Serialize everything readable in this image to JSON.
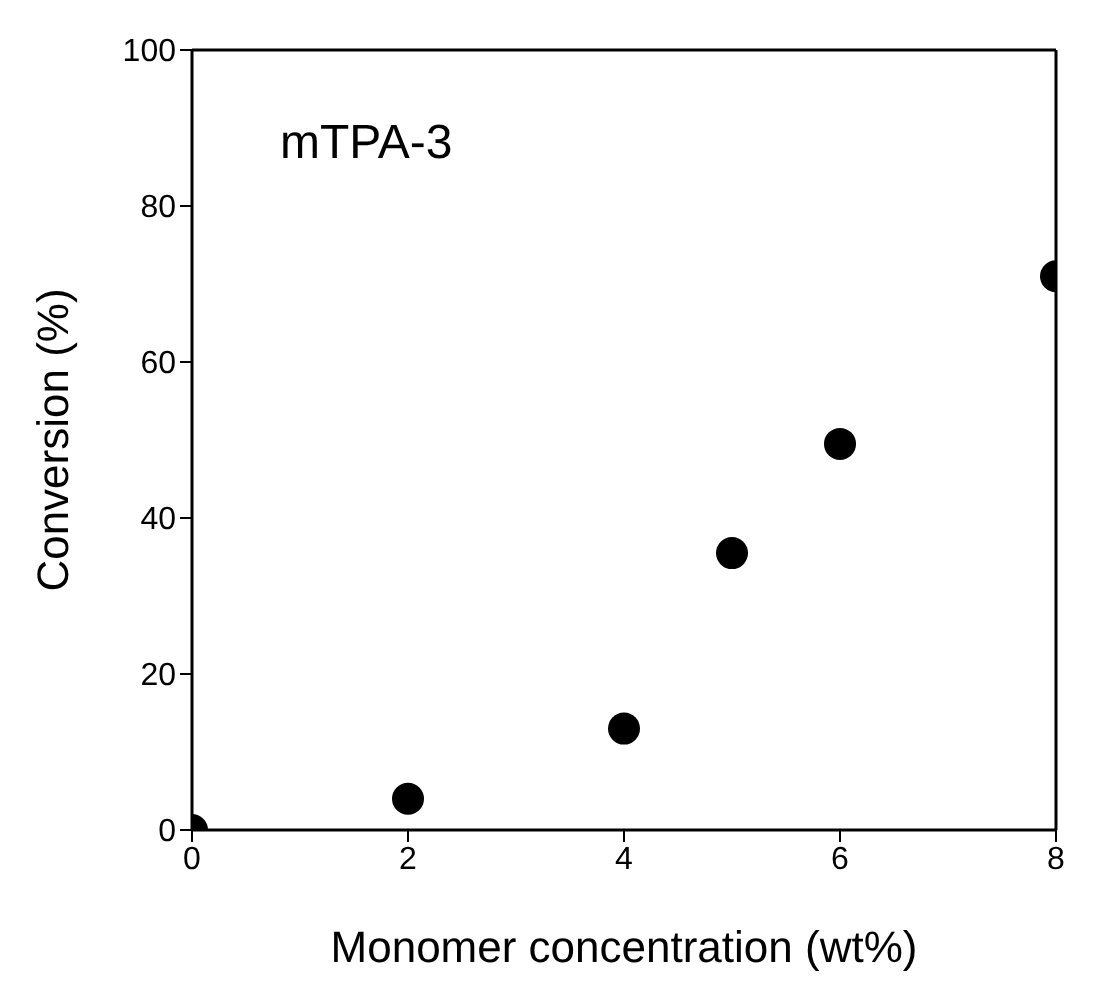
{
  "chart_data": {
    "type": "scatter",
    "xlabel": "Monomer concentration (wt%)",
    "ylabel": "Conversion (%)",
    "annotations": [
      "mTPA-3"
    ],
    "x": [
      0,
      2,
      4,
      5,
      6,
      8
    ],
    "series": [
      {
        "color": "#000000",
        "values": [
          0,
          4,
          13,
          35.5,
          49.5,
          71
        ]
      }
    ],
    "xlim": [
      0,
      8
    ],
    "xticks": [
      0,
      2,
      4,
      6,
      8
    ],
    "ylim": [
      0,
      100
    ],
    "yticks": [
      0,
      20,
      40,
      60,
      80,
      100
    ],
    "marker": "circle"
  }
}
